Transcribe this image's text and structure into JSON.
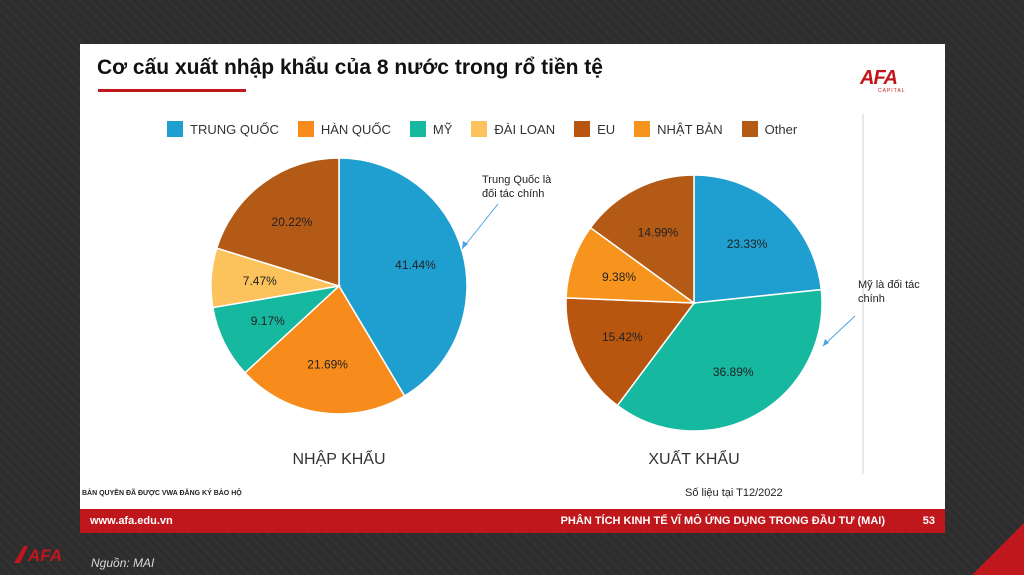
{
  "slide": {
    "title": "Cơ cấu xuất nhập khẩu của 8 nước trong rổ tiền tệ",
    "logo_text": "AFA",
    "logo_sub": "CAPITAL",
    "copyright": "BẢN QUYỀN ĐÃ ĐƯỢC VWA ĐĂNG KÝ BẢO HỘ",
    "data_note": "Số liệu tại T12/2022",
    "footer_url": "www.afa.edu.vn",
    "footer_title": "PHÂN TÍCH KINH TẾ VĨ MÔ ỨNG DỤNG TRONG ĐẦU TƯ (MAI)",
    "page_number": "53",
    "annotation_import": [
      "Trung Quốc là",
      "đối tác chính"
    ],
    "annotation_export": [
      "Mỹ là đối tác",
      "chính"
    ]
  },
  "outer": {
    "logo_text": "AFA",
    "source": "Nguồn: MAI"
  },
  "legend": [
    {
      "label": "TRUNG QUỐC",
      "color": "#1f9fd0"
    },
    {
      "label": "HÀN QUỐC",
      "color": "#f78c1c"
    },
    {
      "label": "MỸ",
      "color": "#17b8a0"
    },
    {
      "label": "ĐÀI LOAN",
      "color": "#fcc25c"
    },
    {
      "label": "EU",
      "color": "#b8560f"
    },
    {
      "label": "NHẬT BẢN",
      "color": "#f7941d"
    },
    {
      "label": "Other",
      "color": "#b35a17"
    }
  ],
  "chart_data": [
    {
      "type": "pie",
      "title": "NHẬP KHẨU",
      "slices": [
        {
          "label": "TRUNG QUỐC",
          "value": 41.44,
          "text": "41.44%",
          "color": "#1f9fd0"
        },
        {
          "label": "HÀN QUỐC",
          "value": 21.69,
          "text": "21.69%",
          "color": "#f78c1c"
        },
        {
          "label": "MỸ",
          "value": 9.17,
          "text": "9.17%",
          "color": "#17b8a0"
        },
        {
          "label": "ĐÀI LOAN",
          "value": 7.47,
          "text": "7.47%",
          "color": "#fcc25c"
        },
        {
          "label": "Other",
          "value": 20.22,
          "text": "20.22%",
          "color": "#b35a17"
        }
      ]
    },
    {
      "type": "pie",
      "title": "XUẤT KHẨU",
      "slices": [
        {
          "label": "TRUNG QUỐC",
          "value": 23.33,
          "text": "23.33%",
          "color": "#1f9fd0"
        },
        {
          "label": "MỸ",
          "value": 36.89,
          "text": "36.89%",
          "color": "#17b8a0"
        },
        {
          "label": "EU",
          "value": 15.42,
          "text": "15.42%",
          "color": "#b8560f"
        },
        {
          "label": "NHẬT BẢN",
          "value": 9.38,
          "text": "9.38%",
          "color": "#f7941d"
        },
        {
          "label": "Other",
          "value": 14.99,
          "text": "14.99%",
          "color": "#b35a17"
        }
      ]
    }
  ]
}
